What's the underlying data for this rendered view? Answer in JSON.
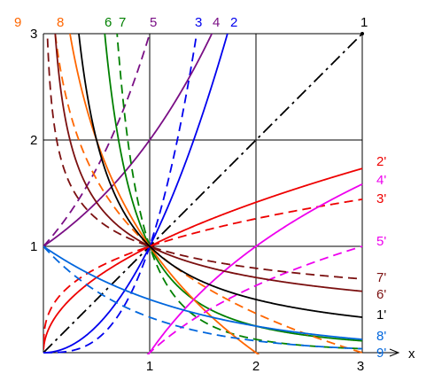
{
  "chart_data": {
    "type": "line",
    "xlabel": "x",
    "xlim": [
      0,
      3
    ],
    "ylim": [
      0,
      3
    ],
    "x_ticks": [
      "1",
      "2",
      "3"
    ],
    "y_ticks": [
      "1",
      "2",
      "3"
    ],
    "grid": true,
    "series": [
      {
        "label": "1",
        "formula": "x",
        "color": "#000000",
        "dash": "dashdot",
        "label_pos": "top"
      },
      {
        "label": "2",
        "formula": "x^2",
        "color": "#0000ee",
        "dash": "solid",
        "label_pos": "top"
      },
      {
        "label": "3",
        "formula": "x^3",
        "color": "#0000ee",
        "dash": "dashed",
        "label_pos": "top"
      },
      {
        "label": "4",
        "formula": "2^x",
        "color": "#7a0f85",
        "dash": "solid",
        "label_pos": "top"
      },
      {
        "label": "5",
        "formula": "3^x",
        "color": "#7a0f85",
        "dash": "dashed",
        "label_pos": "top"
      },
      {
        "label": "6",
        "formula": "x^-2",
        "color": "#008000",
        "dash": "solid",
        "label_pos": "top"
      },
      {
        "label": "7",
        "formula": "x^-3",
        "color": "#008000",
        "dash": "dashed",
        "label_pos": "top"
      },
      {
        "label": "8",
        "formula": "1-log2(x)",
        "color": "#ff6600",
        "dash": "solid",
        "label_pos": "top"
      },
      {
        "label": "9",
        "formula": "1-log3(x)",
        "color": "#ff6600",
        "dash": "dashed",
        "label_pos": "top"
      },
      {
        "label": "2'",
        "formula": "sqrt(x)",
        "color": "#ee0000",
        "dash": "solid",
        "label_pos": "right"
      },
      {
        "label": "3'",
        "formula": "cbrt(x)",
        "color": "#ee0000",
        "dash": "dashed",
        "label_pos": "right"
      },
      {
        "label": "4'",
        "formula": "log2(x)",
        "color": "#ee00ee",
        "dash": "solid",
        "label_pos": "right"
      },
      {
        "label": "5'",
        "formula": "log3(x)",
        "color": "#ee00ee",
        "dash": "dashed",
        "label_pos": "right"
      },
      {
        "label": "6'",
        "formula": "x^-0.5",
        "color": "#7b1010",
        "dash": "solid",
        "label_pos": "right"
      },
      {
        "label": "7'",
        "formula": "x^-1/3",
        "color": "#7b1010",
        "dash": "dashed",
        "label_pos": "right"
      },
      {
        "label": "1'",
        "formula": "1/x",
        "color": "#000000",
        "dash": "solid",
        "label_pos": "right"
      },
      {
        "label": "8'",
        "formula": "2^-x",
        "color": "#0066dd",
        "dash": "solid",
        "label_pos": "right"
      },
      {
        "label": "9'",
        "formula": "3^-x",
        "color": "#0066dd",
        "dash": "dashed",
        "label_pos": "right"
      }
    ]
  }
}
